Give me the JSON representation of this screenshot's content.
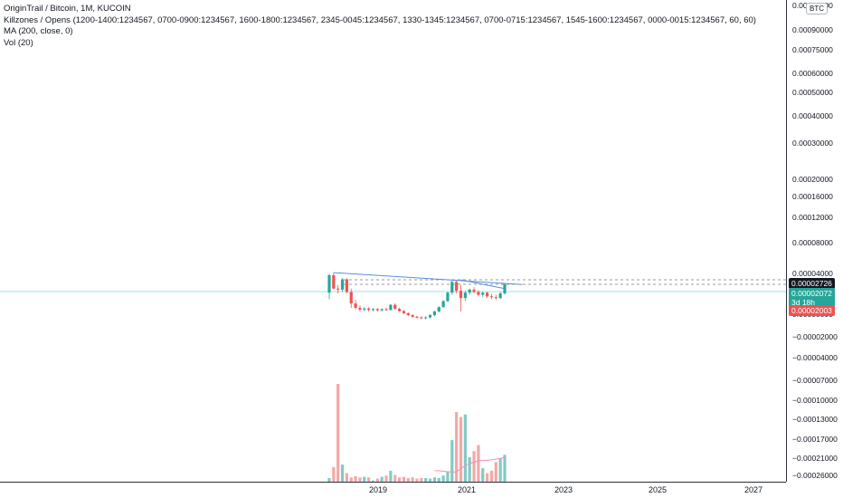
{
  "legend": {
    "symbol": "OriginTrail / Bitcoin, 1M, KUCOIN",
    "indicator1": "Killzones / Opens (1200-1400:1234567, 0700-0900:1234567, 1600-1800:1234567, 2345-0045:1234567, 1330-1345:1234567, 0700-0715:1234567, 1545-1600:1234567, 0000-0015:1234567, 60, 60)",
    "indicator2": "MA (200, close, 0)",
    "indicator3": "Vol (20)"
  },
  "currency_badge": "BTC",
  "price_ticks": [
    {
      "label": "0.00100000",
      "value": 0.001
    },
    {
      "label": "0.00090000",
      "value": 0.0009
    },
    {
      "label": "0.00075000",
      "value": 0.00075
    },
    {
      "label": "0.00060000",
      "value": 0.0006
    },
    {
      "label": "0.00050000",
      "value": 0.0005
    },
    {
      "label": "0.00040000",
      "value": 0.0004
    },
    {
      "label": "0.00030000",
      "value": 0.0003
    },
    {
      "label": "0.00020000",
      "value": 0.0002
    },
    {
      "label": "0.00016000",
      "value": 0.00016
    },
    {
      "label": "0.00012000",
      "value": 0.00012
    },
    {
      "label": "0.00008000",
      "value": 8e-05
    },
    {
      "label": "0.00004000",
      "value": 4e-05
    },
    {
      "label": "0.00000000",
      "value": 0.0
    },
    {
      "label": "−0.00002000",
      "value": -2e-05
    },
    {
      "label": "−0.00004000",
      "value": -4e-05
    },
    {
      "label": "−0.00007000",
      "value": -7e-05
    },
    {
      "label": "−0.00010000",
      "value": -0.0001
    },
    {
      "label": "−0.00013000",
      "value": -0.00013
    },
    {
      "label": "−0.00017000",
      "value": -0.00017
    },
    {
      "label": "−0.00021000",
      "value": -0.00021
    },
    {
      "label": "−0.00026000",
      "value": -0.00026
    }
  ],
  "price_tags": [
    {
      "label": "0.00002726",
      "color": "#131722",
      "value": 2.726e-05
    },
    {
      "label": "0.00002072",
      "sublabel": "3d 18h",
      "color": "#26a69a",
      "value": 2.072e-05
    },
    {
      "label": "0.00002003",
      "color": "#ef5350",
      "value": 2.003e-05
    }
  ],
  "time_ticks": [
    "2019",
    "2021",
    "2023",
    "2025",
    "2027"
  ],
  "chart_data": {
    "type": "candlestick",
    "title": "OriginTrail / Bitcoin, 1M, KUCOIN",
    "scale": "logarithmic",
    "up_color": "#26a69a",
    "down_color": "#ef5350",
    "ma_color": "#f48fb1",
    "trendline_color": "#5b8dd9",
    "candles": [
      {
        "o": 1.25e-05,
        "h": 3.9e-05,
        "l": 8.5e-06,
        "c": 3.6e-05
      },
      {
        "o": 3.6e-05,
        "h": 4.2e-05,
        "l": 1.5e-05,
        "c": 1.6e-05
      },
      {
        "o": 1.6e-05,
        "h": 2e-05,
        "l": 1.2e-05,
        "c": 1.5e-05
      },
      {
        "o": 1.5e-05,
        "h": 3e-05,
        "l": 1.3e-05,
        "c": 2.8e-05
      },
      {
        "o": 2.8e-05,
        "h": 3e-05,
        "l": 1.2e-05,
        "c": 1.3e-05
      },
      {
        "o": 1.3e-05,
        "h": 1.6e-05,
        "l": 5e-06,
        "c": 6.5e-06
      },
      {
        "o": 6.5e-06,
        "h": 8e-06,
        "l": 4.5e-06,
        "c": 5e-06
      },
      {
        "o": 5e-06,
        "h": 5.8e-06,
        "l": 4e-06,
        "c": 4.5e-06
      },
      {
        "o": 4.5e-06,
        "h": 5.2e-06,
        "l": 4e-06,
        "c": 4.8e-06
      },
      {
        "o": 4.8e-06,
        "h": 5.2e-06,
        "l": 4e-06,
        "c": 4.4e-06
      },
      {
        "o": 4.4e-06,
        "h": 5e-06,
        "l": 4e-06,
        "c": 4.6e-06
      },
      {
        "o": 4.6e-06,
        "h": 5e-06,
        "l": 4e-06,
        "c": 4.3e-06
      },
      {
        "o": 4.3e-06,
        "h": 4.8e-06,
        "l": 4e-06,
        "c": 4.6e-06
      },
      {
        "o": 4.6e-06,
        "h": 5e-06,
        "l": 4.1e-06,
        "c": 4.4e-06
      },
      {
        "o": 4.4e-06,
        "h": 6.2e-06,
        "l": 4.2e-06,
        "c": 6e-06
      },
      {
        "o": 6e-06,
        "h": 6.6e-06,
        "l": 4.4e-06,
        "c": 4.7e-06
      },
      {
        "o": 4.7e-06,
        "h": 5e-06,
        "l": 3.9e-06,
        "c": 4.1e-06
      },
      {
        "o": 4.1e-06,
        "h": 4.4e-06,
        "l": 3.4e-06,
        "c": 3.6e-06
      },
      {
        "o": 3.6e-06,
        "h": 3.8e-06,
        "l": 3e-06,
        "c": 3.2e-06
      },
      {
        "o": 3.2e-06,
        "h": 3.4e-06,
        "l": 2.7e-06,
        "c": 2.9e-06
      },
      {
        "o": 2.9e-06,
        "h": 3.1e-06,
        "l": 2.6e-06,
        "c": 2.8e-06
      },
      {
        "o": 2.8e-06,
        "h": 3e-06,
        "l": 2.5e-06,
        "c": 2.7e-06
      },
      {
        "o": 2.7e-06,
        "h": 3e-06,
        "l": 2.5e-06,
        "c": 2.8e-06
      },
      {
        "o": 2.8e-06,
        "h": 3.4e-06,
        "l": 2.6e-06,
        "c": 3.2e-06
      },
      {
        "o": 3.2e-06,
        "h": 4.2e-06,
        "l": 3e-06,
        "c": 4e-06
      },
      {
        "o": 4e-06,
        "h": 5.5e-06,
        "l": 3.8e-06,
        "c": 5.2e-06
      },
      {
        "o": 5.2e-06,
        "h": 8e-06,
        "l": 5e-06,
        "c": 7.5e-06
      },
      {
        "o": 7.5e-06,
        "h": 1.35e-05,
        "l": 7e-06,
        "c": 1.25e-05
      },
      {
        "o": 1.25e-05,
        "h": 2.8e-05,
        "l": 1.1e-05,
        "c": 2.4e-05
      },
      {
        "o": 2.4e-05,
        "h": 2.6e-05,
        "l": 1.2e-05,
        "c": 1.4e-05
      },
      {
        "o": 1.4e-05,
        "h": 2e-05,
        "l": 4e-06,
        "c": 9e-06
      },
      {
        "o": 9e-06,
        "h": 1.4e-05,
        "l": 7.5e-06,
        "c": 1.25e-05
      },
      {
        "o": 1.25e-05,
        "h": 1.6e-05,
        "l": 1.1e-05,
        "c": 1.5e-05
      },
      {
        "o": 1.5e-05,
        "h": 1.75e-05,
        "l": 1.2e-05,
        "c": 1.3e-05
      },
      {
        "o": 1.3e-05,
        "h": 1.45e-05,
        "l": 1e-05,
        "c": 1.1e-05
      },
      {
        "o": 1.1e-05,
        "h": 1.35e-05,
        "l": 9.5e-06,
        "c": 1.25e-05
      },
      {
        "o": 1.25e-05,
        "h": 1.3e-05,
        "l": 9e-06,
        "c": 1e-05
      },
      {
        "o": 1e-05,
        "h": 1.15e-05,
        "l": 8.5e-06,
        "c": 9.5e-06
      },
      {
        "o": 9.5e-06,
        "h": 1.1e-05,
        "l": 8e-06,
        "c": 9e-06
      },
      {
        "o": 9e-06,
        "h": 1.3e-05,
        "l": 8.5e-06,
        "c": 1.2e-05
      },
      {
        "o": 1.2e-05,
        "h": 2.15e-05,
        "l": 1.1e-05,
        "c": 2.07e-05
      }
    ],
    "volumes": [
      0.03,
      0.12,
      0.8,
      0.14,
      0.07,
      0.035,
      0.045,
      0.035,
      0.04,
      0.035,
      0.01,
      0.025,
      0.04,
      0.05,
      0.09,
      0.055,
      0.035,
      0.04,
      0.03,
      0.035,
      0.025,
      0.03,
      0.03,
      0.025,
      0.035,
      0.03,
      0.05,
      0.08,
      0.34,
      0.57,
      0.53,
      0.55,
      0.2,
      0.25,
      0.3,
      0.11,
      0.07,
      0.09,
      0.16,
      0.19,
      0.22
    ],
    "ma_values": [
      null,
      null,
      null,
      null,
      null,
      null,
      null,
      null,
      null,
      null,
      null,
      null,
      null,
      null,
      null,
      null,
      null,
      null,
      null,
      null,
      null,
      null,
      null,
      null,
      0.09,
      0.09,
      0.085,
      0.082,
      0.08,
      0.08,
      0.11,
      0.13,
      0.15,
      0.16,
      0.17,
      0.175,
      0.175,
      0.18,
      0.185,
      0.19,
      0.2
    ],
    "trendlines": [
      {
        "start_candle": 1,
        "start_price": 4.2e-05,
        "end_candle": 44,
        "end_price": 2.05e-05
      },
      {
        "start_candle": 30,
        "start_price": 2.7e-05,
        "end_candle": 40,
        "end_price": 1.6e-05
      }
    ],
    "horizontal_lines": [
      2.726e-05,
      2.072e-05
    ]
  }
}
